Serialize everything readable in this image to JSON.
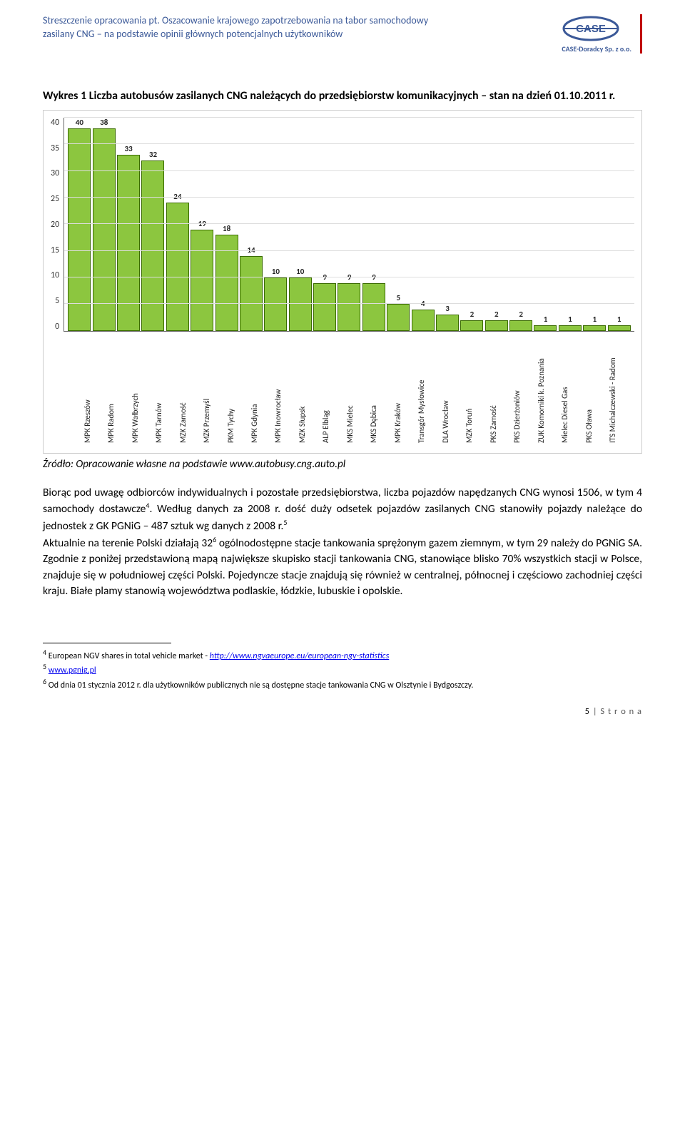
{
  "header": {
    "line1": "Streszczenie opracowania pt. Oszacowanie krajowego zapotrzebowania na tabor samochodowy",
    "line2": "zasilany CNG – na podstawie opinii głównych potencjalnych użytkowników",
    "logo_caption": "CASE-Doradcy Sp. z o.o."
  },
  "section_title": "Wykres 1 Liczba autobusów zasilanych CNG należących do przedsiębiorstw komunikacyjnych – stan na dzień 01.10.2011 r.",
  "chart": {
    "type": "bar",
    "ymax": 40,
    "ytick_step": 5,
    "yticks": [
      "40",
      "35",
      "30",
      "25",
      "20",
      "15",
      "10",
      "5",
      "0"
    ],
    "bar_color": "#8cc63f",
    "bar_border_color": "#3a6b00",
    "grid_color": "#dddddd",
    "background_color": "#ffffff",
    "categories": [
      "MPK Rzeszów",
      "MPK Radom",
      "MPK Wałbrzych",
      "MPK Tarnów",
      "MZK Zamość",
      "MZK Przemyśl",
      "PKM Tychy",
      "MPK Gdynia",
      "MPK Inowrocław",
      "MZK Słupsk",
      "ALP Elbląg",
      "MKS Mielec",
      "MKS Dębica",
      "MPK Kraków",
      "Transgór Mysłowice",
      "DLA Wrocław",
      "MZK Toruń",
      "PKS Zamość",
      "PKS Dzierżoniów",
      "ZUK Komorniki k. Poznania",
      "Mielec Diesel Gas",
      "PKS Oława",
      "ITS Michalczewski - Radom"
    ],
    "values": [
      40,
      38,
      33,
      32,
      24,
      19,
      18,
      14,
      10,
      10,
      9,
      9,
      9,
      5,
      4,
      3,
      2,
      2,
      2,
      1,
      1,
      1,
      1
    ]
  },
  "source": {
    "prefix": "Źródło: Opracowanie własne na podstawie ",
    "link": "www.autobusy.cng.auto.pl"
  },
  "body": {
    "p1_a": "Biorąc pod uwagę odbiorców indywidualnych i pozostałe przedsiębiorstwa, liczba pojazdów napędzanych CNG wynosi 1506, w tym 4 samochody dostawcze",
    "p1_b": ". Według danych za 2008 r. dość duży odsetek pojazdów zasilanych CNG stanowiły pojazdy należące do jednostek z GK PGNiG – 487 sztuk wg danych z 2008 r.",
    "p2_a": "Aktualnie na terenie Polski działają 32",
    "p2_b": " ogólnodostępne stacje tankowania sprężonym gazem ziemnym, w tym 29 należy do PGNiG SA. Zgodnie z poniżej przedstawioną mapą największe skupisko stacji tankowania CNG, stanowiące blisko 70% wszystkich stacji w Polsce, znajduje się w południowej części Polski. Pojedyncze stacje znajdują się również w centralnej, północnej i częściowo zachodniej części kraju. Białe plamy stanowią województwa podlaskie, łódzkie, lubuskie i opolskie."
  },
  "footnotes": {
    "f4_a": "European NGV shares in total vehicle market - ",
    "f4_link": "http://www.ngvaeurope.eu/european-ngv-statistics",
    "f5": "www.pgnig.pl",
    "f6": "Od dnia 01 stycznia 2012 r. dla użytkowników publicznych nie są dostępne stacje tankowania CNG w Olsztynie i Bydgoszczy."
  },
  "page": {
    "num": "5",
    "label": "S t r o n a"
  }
}
